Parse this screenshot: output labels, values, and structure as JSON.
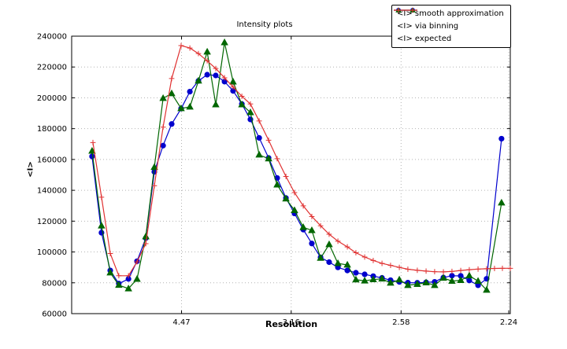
{
  "figure": {
    "title": "Intensity plots",
    "xlabel": "Resolution",
    "ylabel": "<I>"
  },
  "chart_data": {
    "type": "line",
    "title": "Intensity plots",
    "xlabel": "Resolution",
    "ylabel": "<I>",
    "grid": "dotted major gridlines",
    "legend_position": "upper right",
    "x_axis": {
      "note": "x is linear in 1/d^2; tick labels are resolution d in Angstrom",
      "range": [
        0,
        0.2
      ],
      "ticks": [
        {
          "label": "4.47",
          "q": 0.0501
        },
        {
          "label": "3.16",
          "q": 0.1001
        },
        {
          "label": "2.58",
          "q": 0.1502
        },
        {
          "label": "2.24",
          "q": 0.1993
        }
      ]
    },
    "y_axis": {
      "min": 60000,
      "max": 240000,
      "step": 20000
    },
    "series": [
      {
        "name": "<I> smooth approximation",
        "color": "#0000cd",
        "marker": "circle",
        "points": [
          [
            0.0093,
            162000
          ],
          [
            0.0136,
            112500
          ],
          [
            0.0176,
            88000
          ],
          [
            0.0215,
            79500
          ],
          [
            0.0259,
            82500
          ],
          [
            0.0298,
            94000
          ],
          [
            0.0338,
            109000
          ],
          [
            0.0377,
            152000
          ],
          [
            0.0417,
            169000
          ],
          [
            0.0456,
            183000
          ],
          [
            0.0499,
            193000
          ],
          [
            0.0539,
            204000
          ],
          [
            0.0578,
            211000
          ],
          [
            0.0618,
            215000
          ],
          [
            0.0657,
            214500
          ],
          [
            0.0697,
            210500
          ],
          [
            0.0736,
            204500
          ],
          [
            0.0776,
            196000
          ],
          [
            0.0815,
            186000
          ],
          [
            0.0855,
            174000
          ],
          [
            0.0898,
            161000
          ],
          [
            0.0937,
            148000
          ],
          [
            0.0977,
            135000
          ],
          [
            0.1016,
            125000
          ],
          [
            0.1056,
            114500
          ],
          [
            0.1095,
            105500
          ],
          [
            0.1135,
            96500
          ],
          [
            0.1174,
            93400
          ],
          [
            0.1214,
            90000
          ],
          [
            0.1257,
            88000
          ],
          [
            0.1296,
            86500
          ],
          [
            0.1336,
            85500
          ],
          [
            0.1375,
            84300
          ],
          [
            0.1415,
            83200
          ],
          [
            0.1454,
            81700
          ],
          [
            0.1494,
            80600
          ],
          [
            0.1533,
            80100
          ],
          [
            0.1576,
            80000
          ],
          [
            0.1616,
            80300
          ],
          [
            0.1655,
            80600
          ],
          [
            0.1695,
            83400
          ],
          [
            0.1734,
            84600
          ],
          [
            0.1774,
            84500
          ],
          [
            0.1813,
            81500
          ],
          [
            0.1853,
            78400
          ],
          [
            0.1892,
            82600
          ],
          [
            0.196,
            173500
          ]
        ]
      },
      {
        "name": "<I> via binning",
        "color": "#006600",
        "marker": "triangle",
        "points": [
          [
            0.0093,
            165500
          ],
          [
            0.0136,
            117000
          ],
          [
            0.0176,
            86500
          ],
          [
            0.0215,
            78500
          ],
          [
            0.0259,
            76200
          ],
          [
            0.0298,
            82400
          ],
          [
            0.0338,
            110000
          ],
          [
            0.0377,
            155000
          ],
          [
            0.0417,
            199700
          ],
          [
            0.0456,
            202800
          ],
          [
            0.0499,
            193100
          ],
          [
            0.0539,
            194100
          ],
          [
            0.0578,
            211000
          ],
          [
            0.0618,
            229800
          ],
          [
            0.0657,
            195600
          ],
          [
            0.0697,
            235900
          ],
          [
            0.0736,
            210400
          ],
          [
            0.0776,
            195600
          ],
          [
            0.0815,
            190500
          ],
          [
            0.0855,
            163000
          ],
          [
            0.0898,
            160500
          ],
          [
            0.0937,
            143600
          ],
          [
            0.0977,
            134500
          ],
          [
            0.1016,
            127000
          ],
          [
            0.1056,
            116000
          ],
          [
            0.1095,
            114000
          ],
          [
            0.1135,
            96000
          ],
          [
            0.1174,
            104900
          ],
          [
            0.1214,
            92600
          ],
          [
            0.1257,
            91600
          ],
          [
            0.1296,
            82000
          ],
          [
            0.1336,
            81300
          ],
          [
            0.1375,
            82100
          ],
          [
            0.1415,
            82600
          ],
          [
            0.1454,
            79900
          ],
          [
            0.1494,
            82000
          ],
          [
            0.1533,
            78400
          ],
          [
            0.1576,
            79100
          ],
          [
            0.1616,
            80100
          ],
          [
            0.1655,
            78400
          ],
          [
            0.1695,
            83100
          ],
          [
            0.1734,
            81100
          ],
          [
            0.1774,
            81600
          ],
          [
            0.1813,
            84600
          ],
          [
            0.1853,
            81100
          ],
          [
            0.1892,
            75300
          ],
          [
            0.196,
            131900
          ]
        ]
      },
      {
        "name": "<I> expected",
        "color": "#e03131",
        "marker": "plus",
        "points": [
          [
            0.0097,
            171000
          ],
          [
            0.0136,
            135500
          ],
          [
            0.0176,
            99000
          ],
          [
            0.0215,
            84600
          ],
          [
            0.0259,
            84600
          ],
          [
            0.0298,
            93600
          ],
          [
            0.0338,
            105400
          ],
          [
            0.0377,
            143000
          ],
          [
            0.0417,
            181000
          ],
          [
            0.0456,
            212500
          ],
          [
            0.0499,
            233900
          ],
          [
            0.0539,
            232300
          ],
          [
            0.0578,
            228700
          ],
          [
            0.0618,
            224000
          ],
          [
            0.0657,
            219000
          ],
          [
            0.0697,
            213000
          ],
          [
            0.0736,
            207000
          ],
          [
            0.0776,
            201000
          ],
          [
            0.0815,
            196000
          ],
          [
            0.0855,
            185000
          ],
          [
            0.0898,
            172500
          ],
          [
            0.0937,
            160500
          ],
          [
            0.0977,
            149000
          ],
          [
            0.1016,
            138500
          ],
          [
            0.1056,
            129900
          ],
          [
            0.1095,
            123000
          ],
          [
            0.1135,
            117000
          ],
          [
            0.1174,
            111500
          ],
          [
            0.1214,
            107000
          ],
          [
            0.1257,
            103300
          ],
          [
            0.1296,
            99500
          ],
          [
            0.1336,
            96700
          ],
          [
            0.1375,
            94500
          ],
          [
            0.1415,
            92600
          ],
          [
            0.1454,
            91300
          ],
          [
            0.1494,
            90000
          ],
          [
            0.1533,
            88800
          ],
          [
            0.1576,
            88100
          ],
          [
            0.1616,
            87600
          ],
          [
            0.1655,
            87200
          ],
          [
            0.1695,
            87100
          ],
          [
            0.1734,
            87400
          ],
          [
            0.1774,
            88000
          ],
          [
            0.1813,
            88500
          ],
          [
            0.1853,
            88900
          ],
          [
            0.1892,
            89100
          ],
          [
            0.1928,
            89300
          ],
          [
            0.1964,
            89400
          ],
          [
            0.2,
            89400
          ]
        ]
      }
    ]
  }
}
